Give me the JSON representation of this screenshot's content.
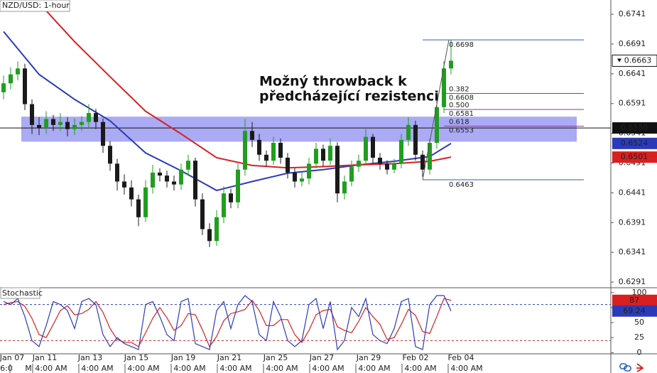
{
  "chart_data": [
    {
      "type": "candlestick",
      "title": "NZD/USD: 1-hour",
      "annotation": [
        "Možný throwback k",
        "předcházející rezistenci"
      ],
      "xlim": [
        -0.5,
        85.5
      ],
      "ylim": [
        0.62815,
        0.6765
      ],
      "yticks": [
        0.6741,
        0.6691,
        0.6641,
        0.6591,
        0.6541,
        0.6491,
        0.6441,
        0.6391,
        0.6341,
        0.6291
      ],
      "xticks": [
        {
          "value": 1.2,
          "label": "Jan 07"
        },
        {
          "value": 5.8,
          "label": "Jan 11"
        },
        {
          "value": 12.2,
          "label": "Jan 13"
        },
        {
          "value": 18.7,
          "label": "Jan 15"
        },
        {
          "value": 25.3,
          "label": "Jan 19"
        },
        {
          "value": 31.8,
          "label": "Jan 21"
        },
        {
          "value": 38.3,
          "label": "Jan 25"
        },
        {
          "value": 44.8,
          "label": "Jan 27"
        },
        {
          "value": 51.4,
          "label": "Jan 29"
        },
        {
          "value": 58,
          "label": "Feb 02"
        },
        {
          "value": 64.4,
          "label": "Feb 04"
        }
      ],
      "xticks2": [
        {
          "value": 0.4,
          "label": "6:0"
        },
        {
          "value": 3.5,
          "label": "M"
        },
        {
          "value": 6.7,
          "label": "4:00 AM"
        },
        {
          "value": 13.2,
          "label": "4:00 AM"
        },
        {
          "value": 19.7,
          "label": "4:00 AM"
        },
        {
          "value": 26.2,
          "label": "4:00 AM"
        },
        {
          "value": 32.7,
          "label": "4:00 AM"
        },
        {
          "value": 39.2,
          "label": "4:00 AM"
        },
        {
          "value": 45.7,
          "label": "4:00 AM"
        },
        {
          "value": 52.2,
          "label": "4:00 AM"
        },
        {
          "value": 58.7,
          "label": "4:00 AM"
        },
        {
          "value": 65.2,
          "label": "4:00 AM"
        }
      ],
      "up_color": "#1f9e1f",
      "down_color": "#1a1a1a",
      "open": [
        0.661,
        0.6625,
        0.664,
        0.665,
        0.659,
        0.6555,
        0.655,
        0.6565,
        0.6555,
        0.656,
        0.6548,
        0.6555,
        0.656,
        0.6575,
        0.656,
        0.652,
        0.649,
        0.646,
        0.645,
        0.643,
        0.64,
        0.645,
        0.6475,
        0.647,
        0.646,
        0.6455,
        0.648,
        0.6495,
        0.643,
        0.638,
        0.636,
        0.64,
        0.644,
        0.6425,
        0.648,
        0.6545,
        0.653,
        0.6505,
        0.6495,
        0.6525,
        0.65,
        0.6475,
        0.646,
        0.6465,
        0.649,
        0.6515,
        0.6495,
        0.652,
        0.644,
        0.646,
        0.6485,
        0.6495,
        0.6535,
        0.65,
        0.649,
        0.648,
        0.649,
        0.653,
        0.6555,
        0.6505,
        0.648,
        0.6525,
        0.6585,
        0.665
      ],
      "high": [
        0.6638,
        0.6652,
        0.6662,
        0.6658,
        0.6598,
        0.6568,
        0.6578,
        0.6572,
        0.6575,
        0.6568,
        0.6566,
        0.657,
        0.659,
        0.6582,
        0.6566,
        0.6528,
        0.6498,
        0.6472,
        0.6462,
        0.6438,
        0.6462,
        0.6488,
        0.6482,
        0.6478,
        0.647,
        0.649,
        0.6505,
        0.65,
        0.644,
        0.639,
        0.6412,
        0.6452,
        0.6448,
        0.649,
        0.6565,
        0.656,
        0.654,
        0.6512,
        0.6535,
        0.6532,
        0.6508,
        0.6482,
        0.6475,
        0.65,
        0.6525,
        0.6522,
        0.6532,
        0.6526,
        0.647,
        0.6495,
        0.6505,
        0.6548,
        0.654,
        0.6508,
        0.6496,
        0.6498,
        0.654,
        0.6568,
        0.6562,
        0.6512,
        0.6532,
        0.6596,
        0.6662,
        0.6698
      ],
      "low": [
        0.6598,
        0.6615,
        0.663,
        0.658,
        0.654,
        0.6538,
        0.654,
        0.6545,
        0.6545,
        0.6536,
        0.6538,
        0.6545,
        0.655,
        0.6548,
        0.6508,
        0.6478,
        0.6445,
        0.6438,
        0.6418,
        0.6385,
        0.6392,
        0.644,
        0.646,
        0.645,
        0.6445,
        0.6446,
        0.647,
        0.6418,
        0.637,
        0.635,
        0.6352,
        0.639,
        0.6415,
        0.6415,
        0.647,
        0.6518,
        0.6495,
        0.6485,
        0.6488,
        0.649,
        0.6465,
        0.645,
        0.6452,
        0.6455,
        0.6482,
        0.6485,
        0.6488,
        0.6425,
        0.643,
        0.6452,
        0.6476,
        0.6488,
        0.649,
        0.648,
        0.6472,
        0.6474,
        0.6482,
        0.652,
        0.6495,
        0.6468,
        0.6472,
        0.6515,
        0.6575,
        0.664
      ],
      "close": [
        0.6625,
        0.664,
        0.665,
        0.659,
        0.6555,
        0.655,
        0.6565,
        0.6555,
        0.656,
        0.6548,
        0.6555,
        0.656,
        0.6575,
        0.656,
        0.652,
        0.649,
        0.646,
        0.645,
        0.643,
        0.64,
        0.645,
        0.6475,
        0.647,
        0.646,
        0.6455,
        0.648,
        0.6495,
        0.643,
        0.638,
        0.636,
        0.64,
        0.644,
        0.6425,
        0.648,
        0.6545,
        0.653,
        0.6505,
        0.6495,
        0.6525,
        0.65,
        0.6475,
        0.646,
        0.6465,
        0.649,
        0.6515,
        0.6495,
        0.652,
        0.644,
        0.646,
        0.6485,
        0.6495,
        0.6535,
        0.65,
        0.649,
        0.648,
        0.649,
        0.653,
        0.6555,
        0.6505,
        0.648,
        0.6525,
        0.6585,
        0.665,
        0.6663
      ],
      "series": [
        {
          "color": "#2b3bb8",
          "x": [
            0,
            5,
            10,
            15,
            20,
            25,
            30,
            35,
            40,
            45,
            50,
            55,
            60,
            63
          ],
          "values": [
            0.6712,
            0.664,
            0.6598,
            0.6562,
            0.6508,
            0.6478,
            0.6445,
            0.646,
            0.6474,
            0.648,
            0.6488,
            0.6494,
            0.6502,
            0.6524
          ]
        },
        {
          "color": "#d92020",
          "x": [
            0,
            5,
            10,
            15,
            20,
            25,
            30,
            35,
            40,
            45,
            50,
            55,
            60,
            63
          ],
          "values": [
            null,
            0.676,
            0.6695,
            0.6636,
            0.6578,
            0.654,
            0.65,
            0.6487,
            0.6483,
            0.6485,
            0.6488,
            0.649,
            0.6494,
            0.6501
          ]
        }
      ],
      "hline": {
        "value": 0.655,
        "label": "0.6550"
      },
      "zone": [
        0.6527,
        0.6569
      ],
      "zone_color": "#7272ee",
      "fib": {
        "high": 0.6698,
        "low": 0.6463,
        "color": "#2f5fb0",
        "level_color": "#8a3a9a",
        "levels": [
          {
            "ratio": 0.382,
            "price": 0.6608
          },
          {
            "ratio": {
              "value": 0.5,
              "label": "0.500"
            },
            "price": 0.6581
          },
          {
            "ratio": 0.618,
            "price": 0.6553
          }
        ]
      }
    },
    {
      "type": "line",
      "title": "Stochastic",
      "ylim": [
        -2,
        108
      ],
      "yticks": [
        100,
        75,
        50,
        25,
        0
      ],
      "levels": [
        80,
        20
      ],
      "level_colors": [
        "#2b3bb8",
        "#d92020"
      ],
      "series": [
        {
          "color": "#2b3bb8",
          "values": [
            85,
            80,
            90,
            60,
            20,
            10,
            45,
            85,
            80,
            70,
            40,
            85,
            90,
            80,
            30,
            10,
            25,
            15,
            10,
            5,
            80,
            85,
            60,
            30,
            20,
            85,
            90,
            15,
            10,
            5,
            70,
            85,
            40,
            80,
            95,
            85,
            30,
            20,
            85,
            60,
            20,
            10,
            20,
            80,
            90,
            40,
            85,
            5,
            20,
            75,
            60,
            90,
            30,
            20,
            15,
            40,
            85,
            90,
            10,
            5,
            80,
            95,
            95,
            69.24
          ]
        },
        {
          "color": "#d92020",
          "values": [
            80,
            83,
            85,
            77,
            57,
            30,
            25,
            47,
            70,
            78,
            63,
            65,
            72,
            85,
            67,
            40,
            22,
            17,
            17,
            10,
            33,
            57,
            75,
            58,
            37,
            45,
            65,
            63,
            38,
            10,
            27,
            53,
            65,
            68,
            72,
            87,
            70,
            45,
            45,
            55,
            55,
            30,
            17,
            37,
            63,
            70,
            72,
            43,
            37,
            33,
            52,
            75,
            60,
            47,
            22,
            25,
            47,
            72,
            62,
            35,
            32,
            60,
            90,
            87
          ]
        }
      ]
    }
  ]
}
